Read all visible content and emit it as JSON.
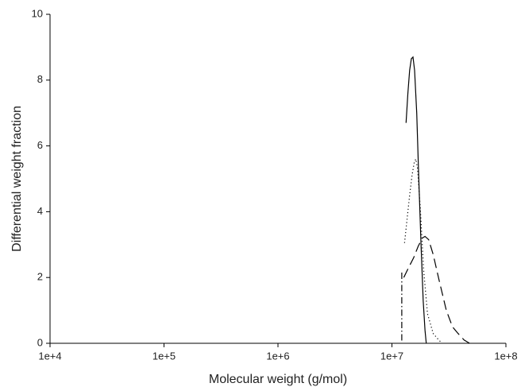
{
  "chart_data": {
    "type": "line",
    "xlabel": "Molecular weight (g/mol)",
    "ylabel": "Differential weight fraction",
    "xscale": "log",
    "xlim": [
      10000,
      100000000
    ],
    "xticks": [
      {
        "value": 10000,
        "label": "1e+4"
      },
      {
        "value": 100000,
        "label": "1e+5"
      },
      {
        "value": 1000000,
        "label": "1e+6"
      },
      {
        "value": 10000000,
        "label": "1e+7"
      },
      {
        "value": 100000000,
        "label": "1e+8"
      }
    ],
    "ylim": [
      0,
      10
    ],
    "yticks": [
      0,
      2,
      4,
      6,
      8,
      10
    ],
    "series": [
      {
        "color": "#000000",
        "dash": "solid",
        "x": [
          13300000,
          13800000,
          14300000,
          14800000,
          15300000,
          15800000,
          16500000,
          17200000,
          18000000,
          18800000,
          19500000,
          20000000
        ],
        "values": [
          6.7,
          7.6,
          8.3,
          8.65,
          8.7,
          8.3,
          7.0,
          5.0,
          3.0,
          1.3,
          0.4,
          0
        ]
      },
      {
        "color": "#000000",
        "dash": "dotted",
        "x": [
          12900000,
          13600000,
          14300000,
          15000000,
          15700000,
          16200000,
          16800000,
          17800000,
          19000000,
          20500000,
          23000000,
          25000000,
          27500000
        ],
        "values": [
          3.05,
          3.8,
          4.5,
          5.1,
          5.5,
          5.6,
          5.3,
          4.0,
          2.2,
          0.9,
          0.3,
          0.15,
          0
        ]
      },
      {
        "color": "#000000",
        "dash": "dashed",
        "x": [
          12700000,
          14000000,
          15500000,
          17000000,
          18500000,
          19500000,
          21000000,
          23000000,
          26000000,
          30000000,
          34000000,
          38000000,
          43000000,
          48000000
        ],
        "values": [
          2.0,
          2.3,
          2.6,
          2.95,
          3.2,
          3.25,
          3.15,
          2.7,
          1.9,
          1.0,
          0.5,
          0.3,
          0.1,
          0
        ]
      },
      {
        "color": "#000000",
        "dash": "dashdot",
        "x": [
          12200000,
          12200000
        ],
        "values": [
          2.15,
          0
        ]
      }
    ]
  }
}
